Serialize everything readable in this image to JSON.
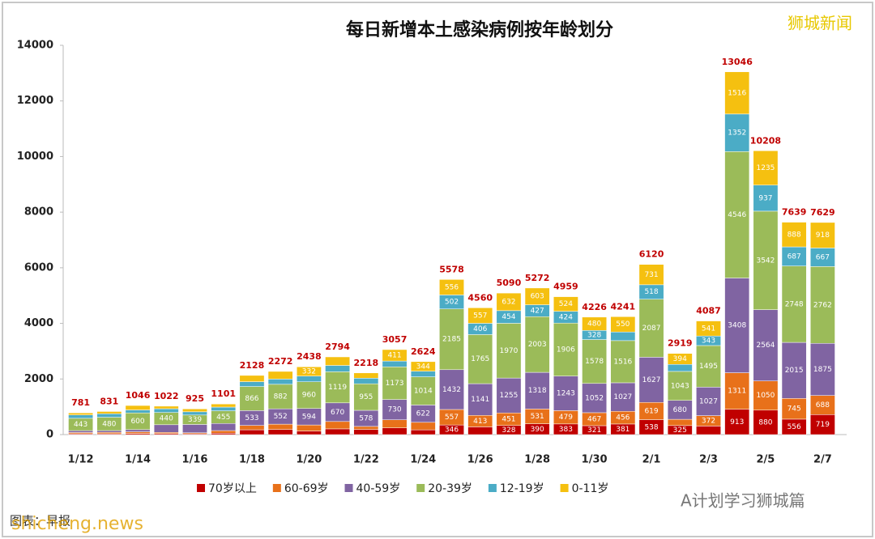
{
  "chart_data": {
    "type": "stacked_bar",
    "title": "每日新增本土感染病例按年龄划分",
    "watermark": "狮城新闻",
    "source": "图表：早报",
    "overlay_left": "shicheng.news",
    "overlay_right": "A计划学习狮城篇",
    "categories": [
      "1/12",
      null,
      "1/14",
      null,
      "1/16",
      null,
      "1/18",
      null,
      "1/20",
      null,
      "1/22",
      null,
      "1/24",
      null,
      "1/26",
      null,
      "1/28",
      null,
      "1/30",
      null,
      "2/1",
      null,
      "2/3",
      null,
      "2/5",
      null,
      "2/7"
    ],
    "series": [
      {
        "name": "70岁以上",
        "color": "#c00000",
        "values": [
          30,
          30,
          40,
          35,
          30,
          50,
          173,
          184,
          129,
          206,
          185,
          242,
          171,
          346,
          278,
          328,
          390,
          383,
          321,
          381,
          538,
          325,
          309,
          913,
          880,
          556,
          719
        ]
      },
      {
        "name": "60-69岁",
        "color": "#e8711a",
        "values": [
          45,
          50,
          61,
          45,
          35,
          94,
          157,
          191,
          217,
          265,
          110,
          291,
          271,
          557,
          413,
          451,
          531,
          479,
          467,
          456,
          619,
          225,
          372,
          1311,
          1050,
          745,
          688
        ]
      },
      {
        "name": "40-59岁",
        "color": "#8064a2",
        "values": [
          68,
          64,
          79,
          275,
          300,
          256,
          533,
          552,
          594,
          670,
          578,
          730,
          622,
          1432,
          1141,
          1255,
          1318,
          1243,
          1052,
          1027,
          1627,
          680,
          1027,
          3408,
          2564,
          2015,
          1875
        ]
      },
      {
        "name": "20-39岁",
        "color": "#9bbb59",
        "values": [
          443,
          480,
          600,
          440,
          339,
          455,
          866,
          882,
          960,
          1119,
          955,
          1173,
          1014,
          2185,
          1765,
          1970,
          2003,
          1906,
          1578,
          1516,
          2087,
          1043,
          1495,
          4546,
          3542,
          2748,
          2762
        ]
      },
      {
        "name": "12-19岁",
        "color": "#4bacc6",
        "values": [
          121,
          127,
          107,
          135,
          116,
          134,
          174,
          189,
          206,
          228,
          201,
          210,
          202,
          502,
          406,
          454,
          427,
          424,
          328,
          311,
          518,
          252,
          343,
          1352,
          937,
          687,
          667
        ]
      },
      {
        "name": "0-11岁",
        "color": "#f5c010",
        "values": [
          74,
          80,
          159,
          92,
          105,
          112,
          225,
          274,
          332,
          306,
          189,
          411,
          344,
          556,
          557,
          632,
          603,
          524,
          480,
          550,
          731,
          394,
          541,
          1516,
          1235,
          888,
          918
        ]
      }
    ],
    "totals": [
      781,
      831,
      1046,
      1022,
      925,
      1101,
      2128,
      2272,
      2438,
      2794,
      2218,
      3057,
      2624,
      5578,
      4560,
      5090,
      5272,
      4959,
      4226,
      4241,
      6120,
      2919,
      4087,
      13046,
      10208,
      7639,
      7629
    ],
    "ylim": [
      0,
      14000
    ],
    "yticks": [
      0,
      2000,
      4000,
      6000,
      8000,
      10000,
      12000,
      14000
    ],
    "grid": false
  }
}
